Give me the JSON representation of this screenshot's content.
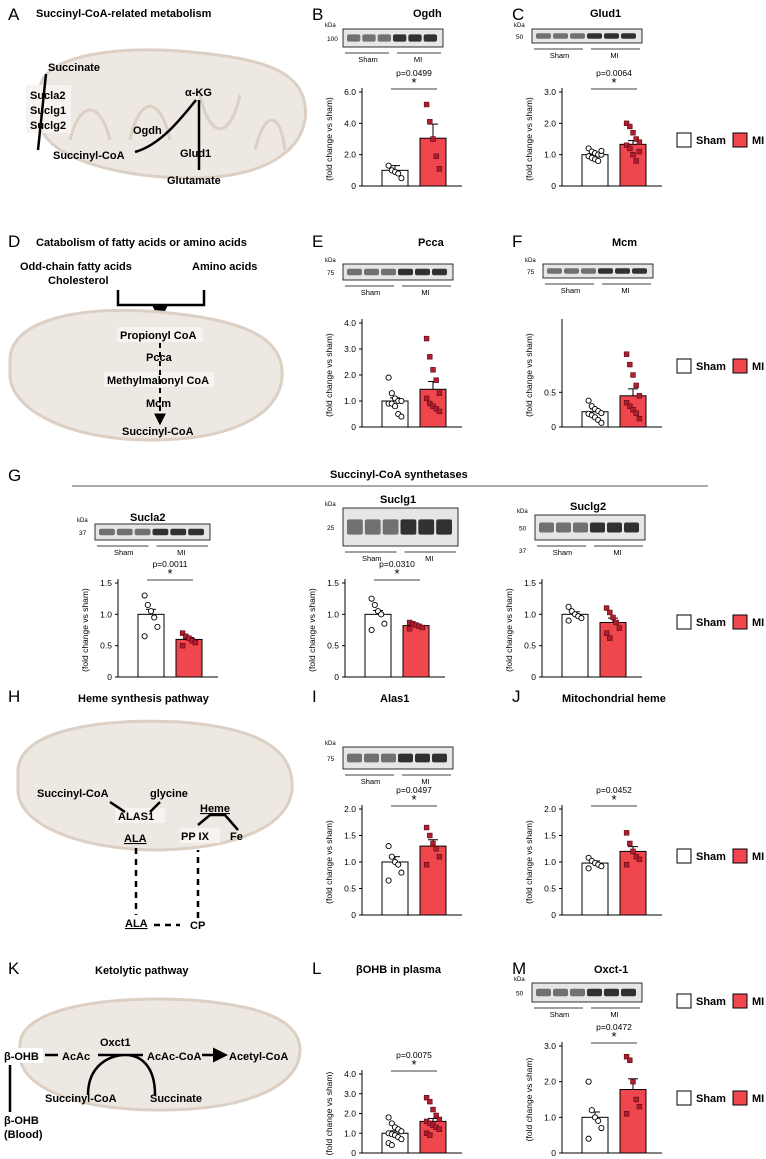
{
  "figure": {
    "labels": [
      "A",
      "B",
      "C",
      "D",
      "E",
      "F",
      "G",
      "H",
      "I",
      "J",
      "K",
      "L",
      "M"
    ],
    "titles": {
      "A": "Succinyl-CoA-related metabolism",
      "D": "Catabolism of fatty acids or amino acids",
      "G": "Succinyl-CoA synthetases",
      "H": "Heme synthesis pathway",
      "K": "Ketolytic pathway"
    },
    "legend": {
      "sham": "Sham",
      "mi": "MI"
    },
    "ylabel": "(fold change vs sham)",
    "colors": {
      "sham": "#ffffff",
      "mi": "#f0474f",
      "mi_dot": "#b01e30",
      "mito_fill": "#eee8e3",
      "mito_line": "#dccfc4"
    },
    "pathway_A": [
      "Succinate",
      "Sucla2",
      "Suclg1",
      "Suclg2",
      "α-KG",
      "Ogdh",
      "Succinyl-CoA",
      "Glud1",
      "Glutamate"
    ],
    "pathway_D": [
      "Odd-chain fatty acids",
      "Cholesterol",
      "Amino acids",
      "Propionyl CoA",
      "Pcca",
      "Methylmalonyl CoA",
      "Mcm",
      "Succinyl-CoA"
    ],
    "pathway_H": [
      "Succinyl-CoA",
      "glycine",
      "Heme",
      "ALAS1",
      "ALA",
      "PP IX",
      "Fe",
      "ALA",
      "CP"
    ],
    "pathway_K": [
      "Oxct1",
      "β-OHB",
      "AcAc",
      "AcAc-CoA",
      "Acetyl-CoA",
      "Succinyl-CoA",
      "Succinate",
      "β-OHB",
      "(Blood)"
    ],
    "blot_group_labels": [
      "Sham",
      "MI"
    ],
    "kda_label": "kDa"
  },
  "chart_data": [
    {
      "panel": "B",
      "type": "bar",
      "title": "Ogdh",
      "categories": [
        "Sham",
        "MI"
      ],
      "values": [
        1.0,
        3.05
      ],
      "sem": [
        0.3,
        0.9
      ],
      "ylim": [
        0,
        6
      ],
      "yticks": [
        "0",
        "2.0",
        "4.0",
        "6.0"
      ],
      "pvalue": "p=0.0499",
      "sig": "*",
      "kda": [
        "100"
      ],
      "points": {
        "Sham": [
          1.3,
          1.0,
          0.9,
          0.8,
          0.5
        ],
        "MI": [
          5.2,
          4.1,
          3.0,
          1.9,
          1.1
        ]
      }
    },
    {
      "panel": "C",
      "type": "bar",
      "title": "Glud1",
      "categories": [
        "Sham",
        "MI"
      ],
      "values": [
        1.0,
        1.33
      ],
      "sem": [
        0.05,
        0.12
      ],
      "ylim": [
        0,
        3
      ],
      "yticks": [
        "0",
        "1.0",
        "2.0",
        "3.0"
      ],
      "pvalue": "p=0.0064",
      "sig": "*",
      "kda": [
        "50"
      ],
      "points": {
        "Sham": [
          1.2,
          1.1,
          1.05,
          1.0,
          1.0,
          0.95,
          0.9,
          0.85,
          0.8,
          1.12
        ],
        "MI": [
          2.0,
          1.9,
          1.7,
          1.5,
          1.4,
          1.3,
          1.2,
          1.0,
          0.8,
          1.1
        ]
      }
    },
    {
      "panel": "E",
      "type": "bar",
      "title": "Pcca",
      "categories": [
        "Sham",
        "MI"
      ],
      "values": [
        1.0,
        1.45
      ],
      "sem": [
        0.12,
        0.3
      ],
      "ylim": [
        0,
        4
      ],
      "yticks": [
        "0",
        "1.0",
        "2.0",
        "3.0",
        "4.0"
      ],
      "kda": [
        "75"
      ],
      "points": {
        "Sham": [
          1.9,
          1.3,
          1.1,
          1.0,
          1.0,
          0.9,
          0.9,
          0.8,
          0.5,
          0.4
        ],
        "MI": [
          3.4,
          2.7,
          2.2,
          1.8,
          1.3,
          1.1,
          0.9,
          0.8,
          0.7,
          0.6
        ]
      }
    },
    {
      "panel": "F",
      "type": "bar",
      "title": "Mcm",
      "categories": [
        "Sham",
        "MI"
      ],
      "values": [
        0.22,
        0.45
      ],
      "sem": [
        0.04,
        0.1
      ],
      "ylim": [
        0,
        1.5
      ],
      "yticks": [
        "0",
        "0.5"
      ],
      "kda": [
        "75"
      ],
      "points": {
        "Sham": [
          0.38,
          0.3,
          0.26,
          0.23,
          0.2,
          0.19,
          0.17,
          0.14,
          0.1,
          0.06
        ],
        "MI": [
          1.05,
          0.9,
          0.75,
          0.6,
          0.45,
          0.35,
          0.3,
          0.25,
          0.2,
          0.12
        ]
      }
    },
    {
      "panel": "G1",
      "type": "bar",
      "title": "Sucla2",
      "categories": [
        "Sham",
        "MI"
      ],
      "values": [
        1.0,
        0.6
      ],
      "sem": [
        0.08,
        0.03
      ],
      "ylim": [
        0,
        1.5
      ],
      "yticks": [
        "0",
        "0.5",
        "1.0",
        "1.5"
      ],
      "pvalue": "p=0.0011",
      "sig": "*",
      "kda": [
        "37"
      ],
      "points": {
        "Sham": [
          1.3,
          1.15,
          1.05,
          0.95,
          0.8,
          0.65
        ],
        "MI": [
          0.7,
          0.65,
          0.62,
          0.58,
          0.55,
          0.5
        ]
      }
    },
    {
      "panel": "G2",
      "type": "bar",
      "title": "Suclg1",
      "categories": [
        "Sham",
        "MI"
      ],
      "values": [
        1.0,
        0.82
      ],
      "sem": [
        0.06,
        0.02
      ],
      "ylim": [
        0,
        1.5
      ],
      "yticks": [
        "0",
        "0.5",
        "1.0",
        "1.5"
      ],
      "pvalue": "p=0.0310",
      "sig": "*",
      "kda": [
        "25"
      ],
      "points": {
        "Sham": [
          1.25,
          1.15,
          1.05,
          1.0,
          0.85,
          0.75
        ],
        "MI": [
          0.87,
          0.85,
          0.83,
          0.81,
          0.79,
          0.77
        ]
      }
    },
    {
      "panel": "G3",
      "type": "bar",
      "title": "Suclg2",
      "categories": [
        "Sham",
        "MI"
      ],
      "values": [
        1.0,
        0.87
      ],
      "sem": [
        0.04,
        0.07
      ],
      "ylim": [
        0,
        1.5
      ],
      "yticks": [
        "0",
        "0.5",
        "1.0",
        "1.5"
      ],
      "kda": [
        "50",
        "37"
      ],
      "points": {
        "Sham": [
          1.12,
          1.05,
          1.0,
          0.97,
          0.94,
          0.9
        ],
        "MI": [
          1.1,
          1.03,
          0.95,
          0.87,
          0.78,
          0.7,
          0.62
        ]
      }
    },
    {
      "panel": "I",
      "type": "bar",
      "title": "Alas1",
      "categories": [
        "Sham",
        "MI"
      ],
      "values": [
        1.0,
        1.3
      ],
      "sem": [
        0.1,
        0.12
      ],
      "ylim": [
        0,
        2
      ],
      "yticks": [
        "0",
        "0.5",
        "1.0",
        "1.5",
        "2.0"
      ],
      "pvalue": "p=0.0497",
      "sig": "*",
      "kda": [
        "75"
      ],
      "points": {
        "Sham": [
          1.3,
          1.1,
          1.0,
          0.95,
          0.8,
          0.65
        ],
        "MI": [
          1.65,
          1.5,
          1.35,
          1.25,
          1.1,
          0.95
        ]
      }
    },
    {
      "panel": "J",
      "type": "bar",
      "title": "Mitochondrial heme",
      "categories": [
        "Sham",
        "MI"
      ],
      "values": [
        0.98,
        1.2
      ],
      "sem": [
        0.04,
        0.09
      ],
      "ylim": [
        0,
        2
      ],
      "yticks": [
        "0",
        "0.5",
        "1.0",
        "1.5",
        "2.0"
      ],
      "pvalue": "p=0.0452",
      "sig": "*",
      "points": {
        "Sham": [
          1.08,
          1.02,
          0.98,
          0.95,
          0.92,
          0.88
        ],
        "MI": [
          1.55,
          1.35,
          1.2,
          1.1,
          1.05,
          0.95
        ]
      }
    },
    {
      "panel": "L",
      "type": "bar",
      "title": "βOHB in plasma",
      "categories": [
        "Sham",
        "MI"
      ],
      "values": [
        1.0,
        1.6
      ],
      "sem": [
        0.12,
        0.15
      ],
      "ylim": [
        0,
        4
      ],
      "yticks": [
        "0",
        "1.0",
        "2.0",
        "3.0",
        "4.0"
      ],
      "pvalue": "p=0.0075",
      "sig": "*",
      "points": {
        "Sham": [
          1.8,
          1.5,
          1.3,
          1.2,
          1.1,
          1.0,
          0.95,
          0.9,
          0.8,
          0.7,
          0.5,
          0.4
        ],
        "MI": [
          2.8,
          2.6,
          2.2,
          1.9,
          1.7,
          1.6,
          1.5,
          1.4,
          1.3,
          1.2,
          1.0,
          0.9
        ]
      }
    },
    {
      "panel": "M",
      "type": "bar",
      "title": "Oxct-1",
      "categories": [
        "Sham",
        "MI"
      ],
      "values": [
        1.0,
        1.78
      ],
      "sem": [
        0.15,
        0.3
      ],
      "ylim": [
        0,
        3
      ],
      "yticks": [
        "0",
        "1.0",
        "2.0",
        "3.0"
      ],
      "pvalue": "p=0.0472",
      "sig": "*",
      "kda": [
        "50"
      ],
      "points": {
        "Sham": [
          2.0,
          1.2,
          1.0,
          0.9,
          0.7,
          0.4
        ],
        "MI": [
          2.7,
          2.6,
          2.0,
          1.5,
          1.3,
          1.1
        ]
      }
    }
  ]
}
